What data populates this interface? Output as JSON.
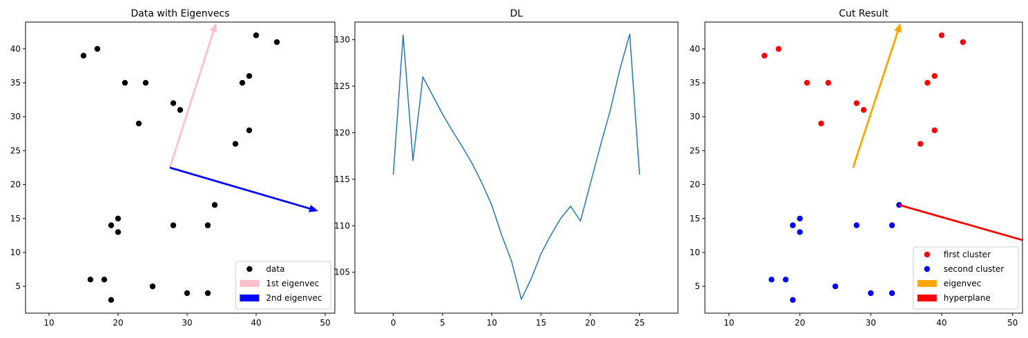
{
  "chart_data": [
    {
      "type": "scatter",
      "title": "Data with Eigenvecs",
      "xlabel": "",
      "ylabel": "",
      "xlim": [
        6.6,
        51.4
      ],
      "ylim": [
        1.05,
        43.95
      ],
      "xticks": [
        10,
        20,
        30,
        40,
        50
      ],
      "yticks": [
        5,
        10,
        15,
        20,
        25,
        30,
        35,
        40
      ],
      "legend_position": "lower right",
      "series": [
        {
          "name": "data",
          "color": "#000000",
          "points": [
            [
              15,
              39
            ],
            [
              17,
              40
            ],
            [
              21,
              35
            ],
            [
              24,
              35
            ],
            [
              28,
              32
            ],
            [
              29,
              31
            ],
            [
              23,
              29
            ],
            [
              37,
              26
            ],
            [
              39,
              28
            ],
            [
              38,
              35
            ],
            [
              39,
              36
            ],
            [
              40,
              42
            ],
            [
              43,
              41
            ],
            [
              34,
              17
            ],
            [
              19,
              14
            ],
            [
              20,
              15
            ],
            [
              20,
              13
            ],
            [
              28,
              14
            ],
            [
              33,
              14
            ],
            [
              16,
              6
            ],
            [
              18,
              6
            ],
            [
              19,
              3
            ],
            [
              25,
              5
            ],
            [
              30,
              4
            ],
            [
              33,
              4
            ]
          ]
        }
      ],
      "arrows": [
        {
          "name": "1st eigenvec",
          "color": "#ffc0cb",
          "from": [
            27.5,
            22.5
          ],
          "to": [
            34.2,
            43.8
          ]
        },
        {
          "name": "2nd eigenvec",
          "color": "#0000ff",
          "from": [
            27.5,
            22.5
          ],
          "to": [
            49.0,
            16.1
          ]
        }
      ]
    },
    {
      "type": "line",
      "title": "DL",
      "xlabel": "",
      "ylabel": "",
      "xlim": [
        -3.9,
        28.9
      ],
      "ylim": [
        100.6,
        131.9
      ],
      "xticks": [
        0,
        5,
        10,
        15,
        20,
        25
      ],
      "yticks": [
        105,
        110,
        115,
        120,
        125,
        130
      ],
      "series": [
        {
          "color": "#1f77b4",
          "x": [
            0,
            1,
            2,
            3,
            4,
            5,
            6,
            7,
            8,
            9,
            10,
            11,
            12,
            13,
            14,
            15,
            16,
            17,
            18,
            19,
            20,
            21,
            22,
            23,
            24,
            25
          ],
          "y": [
            115.5,
            130.5,
            117.0,
            126.0,
            124.0,
            122.0,
            120.2,
            118.5,
            116.7,
            114.6,
            112.2,
            109.0,
            106.2,
            102.1,
            104.3,
            107.0,
            109.0,
            110.8,
            112.1,
            110.5,
            114.5,
            118.5,
            122.3,
            126.8,
            130.6,
            115.5
          ]
        }
      ]
    },
    {
      "type": "scatter",
      "title": "Cut Result",
      "xlabel": "",
      "ylabel": "",
      "xlim": [
        6.6,
        51.4
      ],
      "ylim": [
        1.05,
        43.95
      ],
      "xticks": [
        10,
        20,
        30,
        40,
        50
      ],
      "yticks": [
        5,
        10,
        15,
        20,
        25,
        30,
        35,
        40
      ],
      "legend_position": "lower right",
      "series": [
        {
          "name": "first cluster",
          "color": "#ff0000",
          "points": [
            [
              15,
              39
            ],
            [
              17,
              40
            ],
            [
              21,
              35
            ],
            [
              24,
              35
            ],
            [
              28,
              32
            ],
            [
              29,
              31
            ],
            [
              23,
              29
            ],
            [
              37,
              26
            ],
            [
              39,
              28
            ],
            [
              38,
              35
            ],
            [
              39,
              36
            ],
            [
              40,
              42
            ],
            [
              43,
              41
            ]
          ]
        },
        {
          "name": "second cluster",
          "color": "#0000ff",
          "points": [
            [
              34,
              17
            ],
            [
              19,
              14
            ],
            [
              20,
              15
            ],
            [
              20,
              13
            ],
            [
              28,
              14
            ],
            [
              33,
              14
            ],
            [
              16,
              6
            ],
            [
              18,
              6
            ],
            [
              19,
              3
            ],
            [
              25,
              5
            ],
            [
              30,
              4
            ],
            [
              33,
              4
            ]
          ]
        }
      ],
      "arrows": [
        {
          "name": "eigenvec",
          "color": "#ffa500",
          "from": [
            27.5,
            22.5
          ],
          "to": [
            34.2,
            43.8
          ]
        },
        {
          "name": "hyperplane",
          "color": "#ff0000",
          "from": [
            34.0,
            17.0
          ],
          "to": [
            55.5,
            10.6
          ]
        }
      ]
    }
  ]
}
